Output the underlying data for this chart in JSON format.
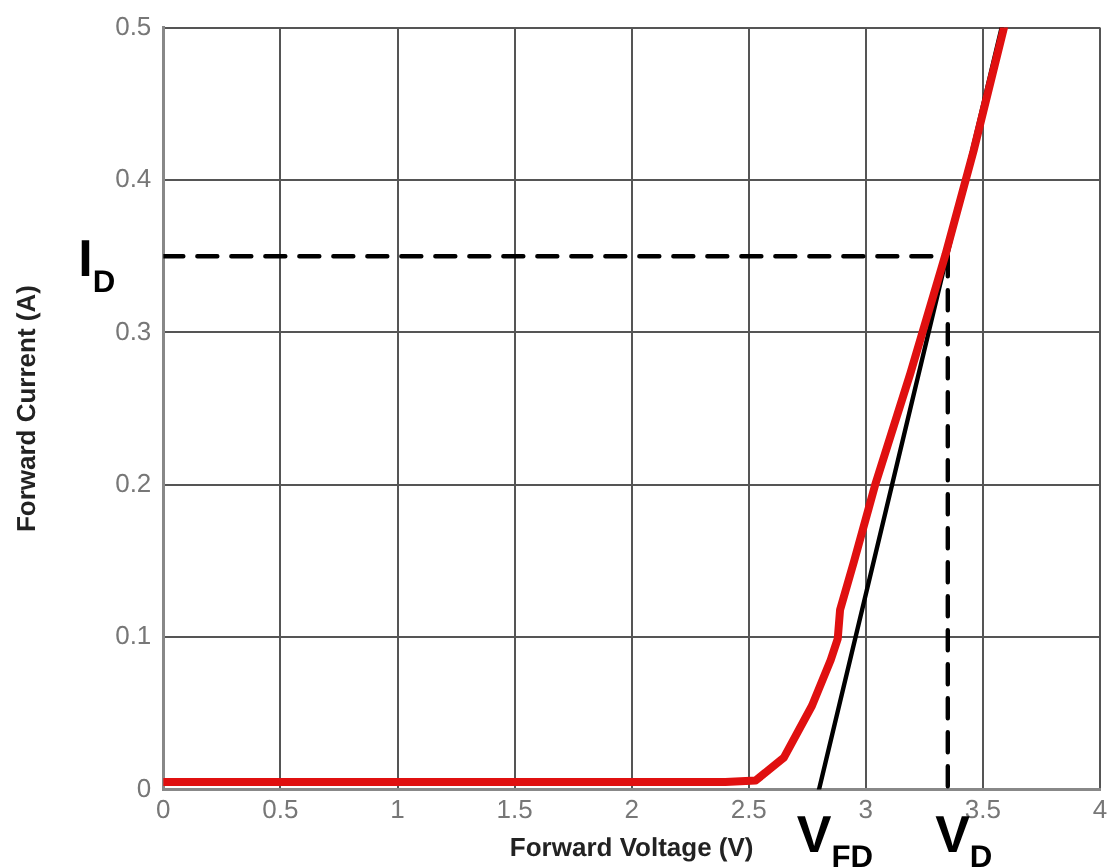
{
  "chart_data": {
    "type": "line",
    "xlabel": "Forward Voltage (V)",
    "ylabel": "Forward Current (A)",
    "xlim": [
      0,
      4
    ],
    "ylim": [
      0,
      0.5
    ],
    "xticks": [
      0,
      0.5,
      1,
      1.5,
      2,
      2.5,
      3,
      3.5,
      4
    ],
    "yticks": [
      0,
      0.1,
      0.2,
      0.3,
      0.4,
      0.5
    ],
    "grid": true,
    "legend": false,
    "marker": "none",
    "series": [
      {
        "color": "#e01010",
        "x": [
          0,
          1,
          2,
          2.4,
          2.53,
          2.65,
          2.77,
          2.85,
          2.88,
          2.89,
          2.95,
          3.04,
          3.19,
          3.34,
          3.46,
          3.59
        ],
        "values": [
          0.005,
          0.005,
          0.005,
          0.005,
          0.006,
          0.021,
          0.055,
          0.085,
          0.099,
          0.118,
          0.15,
          0.2,
          0.273,
          0.351,
          0.419,
          0.5
        ],
        "line_style": "solid"
      },
      {
        "color": "#000000",
        "x": [
          2.8,
          3.58
        ],
        "values": [
          0,
          0.5
        ],
        "line_style": "solid"
      },
      {
        "color": "#000000",
        "x": [
          0,
          3.35
        ],
        "values": [
          0.35,
          0.35
        ],
        "line_style": "dashed"
      },
      {
        "color": "#000000",
        "x": [
          3.35,
          3.35
        ],
        "values": [
          0.35,
          0
        ],
        "line_style": "dashed"
      }
    ],
    "annotations": [
      {
        "text": "I$_{D}$",
        "x": 0,
        "y": 0.35
      },
      {
        "text": "V$_{FD}$",
        "x": 2.8,
        "y": 0
      },
      {
        "text": "V$_{D}$",
        "x": 3.35,
        "y": 0
      }
    ]
  }
}
